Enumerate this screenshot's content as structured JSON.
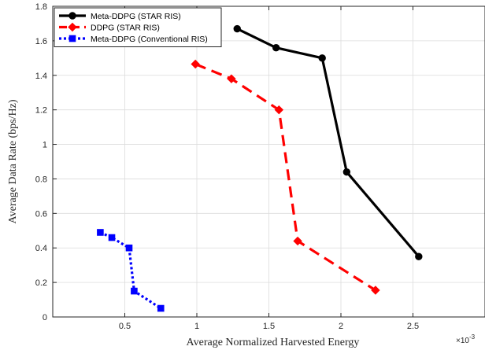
{
  "chart_data": {
    "type": "line",
    "title": "",
    "xlabel": "Average Normalized Harvested Energy",
    "ylabel": "Average Data Rate (bps/Hz)",
    "x_multiplier_label": "×10",
    "x_multiplier_exp": "-3",
    "xlim": [
      0,
      3
    ],
    "ylim": [
      0,
      1.8
    ],
    "x_ticks": [
      0.5,
      1,
      1.5,
      2,
      2.5
    ],
    "x_tick_labels": [
      "0.5",
      "1",
      "1.5",
      "2",
      "2.5"
    ],
    "y_ticks": [
      0,
      0.2,
      0.4,
      0.6,
      0.8,
      1,
      1.2,
      1.4,
      1.6,
      1.8
    ],
    "y_tick_labels": [
      "0",
      "0.2",
      "0.4",
      "0.6",
      "0.8",
      "1",
      "1.2",
      "1.4",
      "1.6",
      "1.8"
    ],
    "grid": true,
    "legend_position": "top-left",
    "series": [
      {
        "name": "Meta-DDPG (STAR RIS)",
        "color": "#000000",
        "line_style": "solid",
        "marker": "circle",
        "x": [
          1.28,
          1.55,
          1.87,
          2.04,
          2.54
        ],
        "y": [
          1.67,
          1.56,
          1.5,
          0.84,
          0.35
        ]
      },
      {
        "name": "DDPG (STAR RIS)",
        "color": "#ff0000",
        "line_style": "dashed",
        "marker": "diamond",
        "x": [
          0.99,
          1.24,
          1.57,
          1.7,
          2.24
        ],
        "y": [
          1.465,
          1.38,
          1.2,
          0.44,
          0.155
        ]
      },
      {
        "name": "Meta-DDPG (Conventional RIS)",
        "color": "#0000ff",
        "line_style": "dotted",
        "marker": "square",
        "x": [
          0.33,
          0.41,
          0.53,
          0.565,
          0.75
        ],
        "y": [
          0.49,
          0.46,
          0.4,
          0.15,
          0.05
        ]
      }
    ]
  }
}
